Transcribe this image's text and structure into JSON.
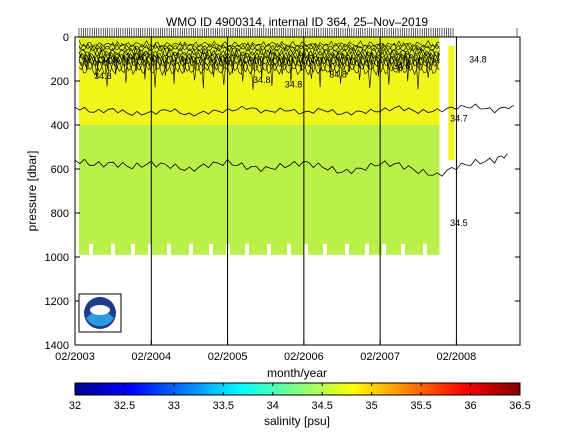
{
  "chart_data": [
    {
      "type": "heatmap",
      "title": "WMO ID 4900314, internal ID 364, 25–Nov–2019",
      "xlabel": "month/year",
      "ylabel": "pressure [dbar]",
      "x_ticks": [
        "02/2003",
        "02/2004",
        "02/2005",
        "02/2006",
        "02/2007",
        "02/2008"
      ],
      "y_ticks": [
        0,
        200,
        400,
        600,
        800,
        1000,
        1200,
        1400
      ],
      "ylim": [
        1400,
        0
      ],
      "y_reversed": true,
      "xlim": [
        "2003-02",
        "2008-12"
      ],
      "profile_dates": [
        "2004-02",
        "2005-02",
        "2006-02",
        "2007-02",
        "2008-02",
        "2008-12"
      ],
      "data_extent": {
        "start": "2003-02",
        "end": "2008-02",
        "max_pressure": 990
      },
      "salinity_layers": [
        {
          "pressure_top": 0,
          "pressure_bottom": 120,
          "salinity": 34.9,
          "color": "#ddf01a"
        },
        {
          "pressure_top": 120,
          "pressure_bottom": 400,
          "salinity": 34.85,
          "color": "#f0f51a"
        },
        {
          "pressure_top": 400,
          "pressure_bottom": 990,
          "salinity": 34.55,
          "color": "#b9f04a"
        }
      ],
      "contour_labels": [
        {
          "text": "34.8",
          "date": "2003-06",
          "pressure": 120
        },
        {
          "text": "34.8",
          "date": "2003-10",
          "pressure": 105
        },
        {
          "text": "34.8",
          "date": "2003-05",
          "pressure": 190
        },
        {
          "text": "34.8",
          "date": "2005-06",
          "pressure": 210
        },
        {
          "text": "34.8",
          "date": "2005-11",
          "pressure": 230
        },
        {
          "text": "34.8",
          "date": "2006-06",
          "pressure": 185
        },
        {
          "text": "34.8",
          "date": "2007-04",
          "pressure": 145
        },
        {
          "text": "34.8",
          "date": "2008-04",
          "pressure": 115
        },
        {
          "text": "34.7",
          "date": "2008-01",
          "pressure": 385
        },
        {
          "text": "34.5",
          "date": "2008-01",
          "pressure": 860
        }
      ],
      "contour_34_7_upper": [
        [
          0,
          320
        ],
        [
          3,
          340
        ],
        [
          6,
          330
        ],
        [
          9,
          350
        ],
        [
          12,
          345
        ],
        [
          15,
          330
        ],
        [
          18,
          355
        ],
        [
          21,
          340
        ],
        [
          24,
          335
        ],
        [
          27,
          320
        ],
        [
          30,
          340
        ],
        [
          33,
          330
        ],
        [
          36,
          345
        ],
        [
          39,
          330
        ],
        [
          42,
          350
        ],
        [
          45,
          340
        ],
        [
          48,
          335
        ],
        [
          51,
          320
        ],
        [
          54,
          340
        ],
        [
          57,
          335
        ],
        [
          60,
          320
        ],
        [
          63,
          315
        ],
        [
          66,
          335
        ],
        [
          69,
          310
        ]
      ],
      "contour_34_7_lower": [
        [
          0,
          560
        ],
        [
          3,
          580
        ],
        [
          6,
          575
        ],
        [
          9,
          590
        ],
        [
          12,
          575
        ],
        [
          15,
          585
        ],
        [
          18,
          605
        ],
        [
          21,
          580
        ],
        [
          24,
          570
        ],
        [
          27,
          590
        ],
        [
          30,
          600
        ],
        [
          33,
          585
        ],
        [
          36,
          570
        ],
        [
          39,
          590
        ],
        [
          42,
          615
        ],
        [
          45,
          600
        ],
        [
          48,
          575
        ],
        [
          51,
          580
        ],
        [
          54,
          610
        ],
        [
          57,
          630
        ],
        [
          60,
          590
        ],
        [
          63,
          570
        ],
        [
          66,
          560
        ],
        [
          68,
          530
        ]
      ],
      "colorbar": {
        "label": "salinity [psu]",
        "ticks": [
          32,
          32.5,
          33,
          33.5,
          34,
          34.5,
          35,
          35.5,
          36,
          36.5
        ],
        "range": [
          32,
          36.5
        ],
        "colormap": [
          "#00008f",
          "#0000ff",
          "#0080ff",
          "#00ffff",
          "#80ff80",
          "#ffff00",
          "#ff8000",
          "#ff0000",
          "#800000"
        ]
      },
      "logo": "noaa-logo"
    }
  ]
}
